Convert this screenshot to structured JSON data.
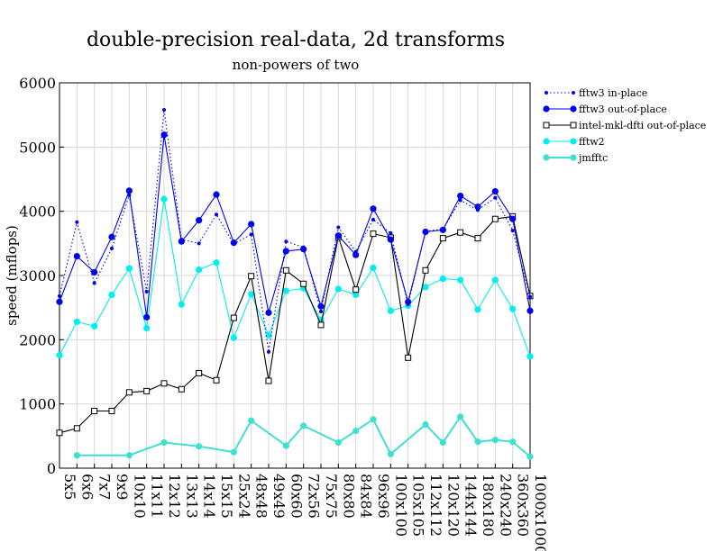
{
  "chart_data": {
    "type": "line",
    "title": "double-precision real-data, 2d transforms",
    "subtitle": "non-powers of two",
    "xlabel": "",
    "ylabel": "speed (mflops)",
    "ylim": [
      0,
      6000
    ],
    "yticks": [
      0,
      1000,
      2000,
      3000,
      4000,
      5000,
      6000
    ],
    "grid": true,
    "legend_position": "top-right",
    "categories": [
      "5x5",
      "6x6",
      "7x7",
      "9x9",
      "10x10",
      "11x11",
      "12x12",
      "13x13",
      "14x14",
      "15x15",
      "25x24",
      "48x48",
      "49x49",
      "60x60",
      "72x56",
      "75x75",
      "80x80",
      "84x84",
      "96x96",
      "100x100",
      "105x105",
      "112x112",
      "120x120",
      "144x144",
      "180x180",
      "240x240",
      "360x360",
      "1000x1000"
    ],
    "series": [
      {
        "name": "fftw3 in-place",
        "color": "#0000ee",
        "style": "dotted",
        "marker": "small-dot",
        "values": [
          2680,
          3830,
          2880,
          3420,
          4250,
          2750,
          5580,
          3560,
          3500,
          3950,
          3490,
          3640,
          1810,
          3530,
          3440,
          2440,
          3750,
          3370,
          3870,
          3660,
          2550,
          3690,
          3720,
          4170,
          4020,
          4210,
          3700,
          2670
        ]
      },
      {
        "name": "fftw3 out-of-place",
        "color": "#0000ee",
        "style": "solid",
        "marker": "dot",
        "values": [
          2590,
          3300,
          3050,
          3600,
          4320,
          2350,
          5190,
          3530,
          3860,
          4260,
          3510,
          3800,
          2420,
          3380,
          3410,
          2520,
          3620,
          3320,
          4040,
          3560,
          2590,
          3680,
          3710,
          4240,
          4070,
          4310,
          3880,
          2450
        ]
      },
      {
        "name": "intel-mkl-dfti out-of-place",
        "color": "#000000",
        "style": "solid",
        "marker": "open-square",
        "values": [
          550,
          620,
          890,
          890,
          1180,
          1200,
          1320,
          1230,
          1480,
          1370,
          2340,
          2990,
          1360,
          3080,
          2870,
          2230,
          3600,
          2780,
          3650,
          3590,
          1720,
          3080,
          3580,
          3670,
          3580,
          3880,
          3920,
          2680
        ]
      },
      {
        "name": "fftw2",
        "color": "#00eeee",
        "style": "solid",
        "marker": "dot",
        "values": [
          1760,
          2280,
          2210,
          2700,
          3110,
          2180,
          4190,
          2550,
          3090,
          3200,
          2030,
          2710,
          2070,
          2760,
          2800,
          2310,
          2790,
          2700,
          3120,
          2450,
          2530,
          2820,
          2950,
          2930,
          2470,
          2930,
          2480,
          1740
        ]
      },
      {
        "name": "jmfftc",
        "color": "#40e0d0",
        "style": "solid",
        "marker": "dot",
        "values": [
          null,
          200,
          null,
          null,
          200,
          null,
          400,
          null,
          340,
          null,
          250,
          740,
          null,
          350,
          660,
          null,
          400,
          580,
          760,
          220,
          null,
          680,
          400,
          800,
          410,
          440,
          410,
          180
        ]
      }
    ]
  }
}
